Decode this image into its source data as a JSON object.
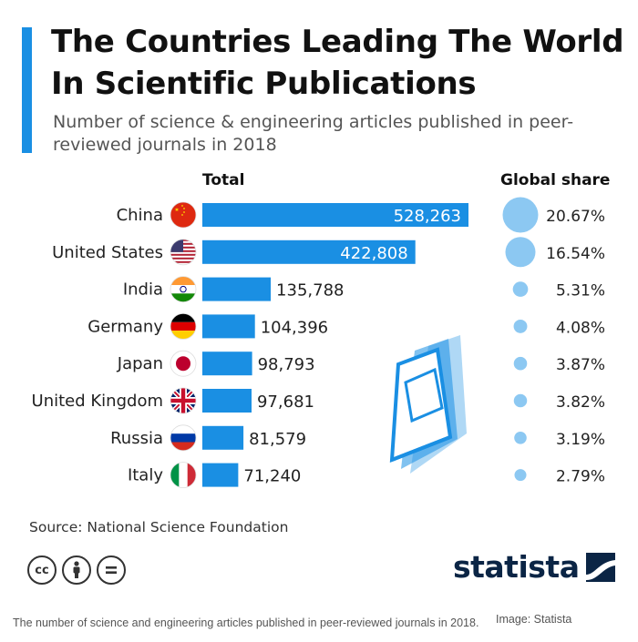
{
  "title": "The Countries Leading The World In Scientific Publications",
  "subtitle": "Number of science & engineering articles published in peer-reviewed journals in 2018",
  "column_headers": {
    "total": "Total",
    "share": "Global share"
  },
  "source": "Source: National Science Foundation",
  "brand": "statista",
  "caption": "The number of science and engineering articles published in peer-reviewed journals in 2018.",
  "credit": "Image: Statista",
  "colors": {
    "bar": "#1a8fe3",
    "bubble": "#8cc8f2",
    "accent": "#1a8fe3"
  },
  "icons": [
    "cc-icon",
    "by-icon",
    "nd-icon",
    "statista-logo-icon",
    "journals-illustration-icon"
  ],
  "chart_data": {
    "type": "bar",
    "orientation": "horizontal",
    "categories": [
      "China",
      "United States",
      "India",
      "Germany",
      "Japan",
      "United Kingdom",
      "Russia",
      "Italy"
    ],
    "values": [
      528263,
      422808,
      135788,
      104396,
      98793,
      97681,
      81579,
      71240
    ],
    "value_labels": [
      "528,263",
      "422,808",
      "135,788",
      "104,396",
      "98,793",
      "97,681",
      "81,579",
      "71,240"
    ],
    "global_share": [
      20.67,
      16.54,
      5.31,
      4.08,
      3.87,
      3.82,
      3.19,
      2.79
    ],
    "global_share_labels": [
      "20.67%",
      "16.54%",
      "5.31%",
      "4.08%",
      "3.87%",
      "3.82%",
      "3.19%",
      "2.79%"
    ],
    "flags": [
      "china-flag-icon",
      "usa-flag-icon",
      "india-flag-icon",
      "germany-flag-icon",
      "japan-flag-icon",
      "uk-flag-icon",
      "russia-flag-icon",
      "italy-flag-icon"
    ],
    "xlim": [
      0,
      528263
    ],
    "grid": false,
    "legend": "none"
  }
}
